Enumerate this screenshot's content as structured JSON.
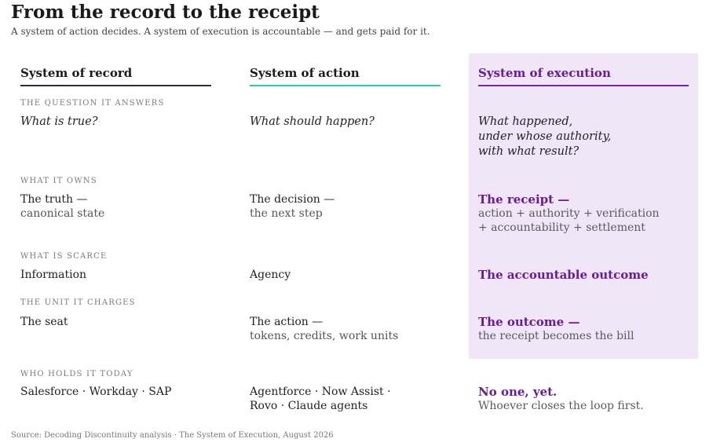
{
  "title": "From the record to the receipt",
  "subtitle": "A system of action decides. A system of execution is accountable — and gets paid for it.",
  "columns": {
    "record": "System of record",
    "action": "System of action",
    "execution": "System of execution"
  },
  "rows": {
    "question": {
      "label": "THE QUESTION IT ANSWERS",
      "record": "What is true?",
      "action": "What should happen?",
      "execution": [
        "What happened,",
        "under whose authority,",
        "with what result?"
      ]
    },
    "owns": {
      "label": "WHAT IT OWNS",
      "record": [
        "The truth —",
        "canonical state"
      ],
      "action": [
        "The decision —",
        "the next step"
      ],
      "execution": [
        "The receipt —",
        "action + authority + verification",
        "+ accountability + settlement"
      ]
    },
    "scarce": {
      "label": "WHAT IS SCARCE",
      "record": "Information",
      "action": "Agency",
      "execution": "The accountable outcome"
    },
    "charges": {
      "label": "THE UNIT IT CHARGES",
      "record": "The seat",
      "action": [
        "The action —",
        "tokens, credits, work units"
      ],
      "execution": [
        "The outcome —",
        "the receipt becomes the bill"
      ]
    },
    "holds": {
      "label": "WHO HOLDS IT TODAY",
      "record": "Salesforce · Workday · SAP",
      "action": [
        "Agentforce · Now Assist ·",
        "Rovo · Claude agents"
      ],
      "execution": [
        "No one, yet.",
        "Whoever closes the loop first."
      ]
    }
  },
  "source": "Source: Decoding Discontinuity analysis · The System of Execution, August 2026",
  "colors": {
    "record_accent": "#2a2e3a",
    "action_accent": "#2cc5bd",
    "execution_accent": "#7a22a8",
    "execution_panel": "#f0e6f7"
  }
}
